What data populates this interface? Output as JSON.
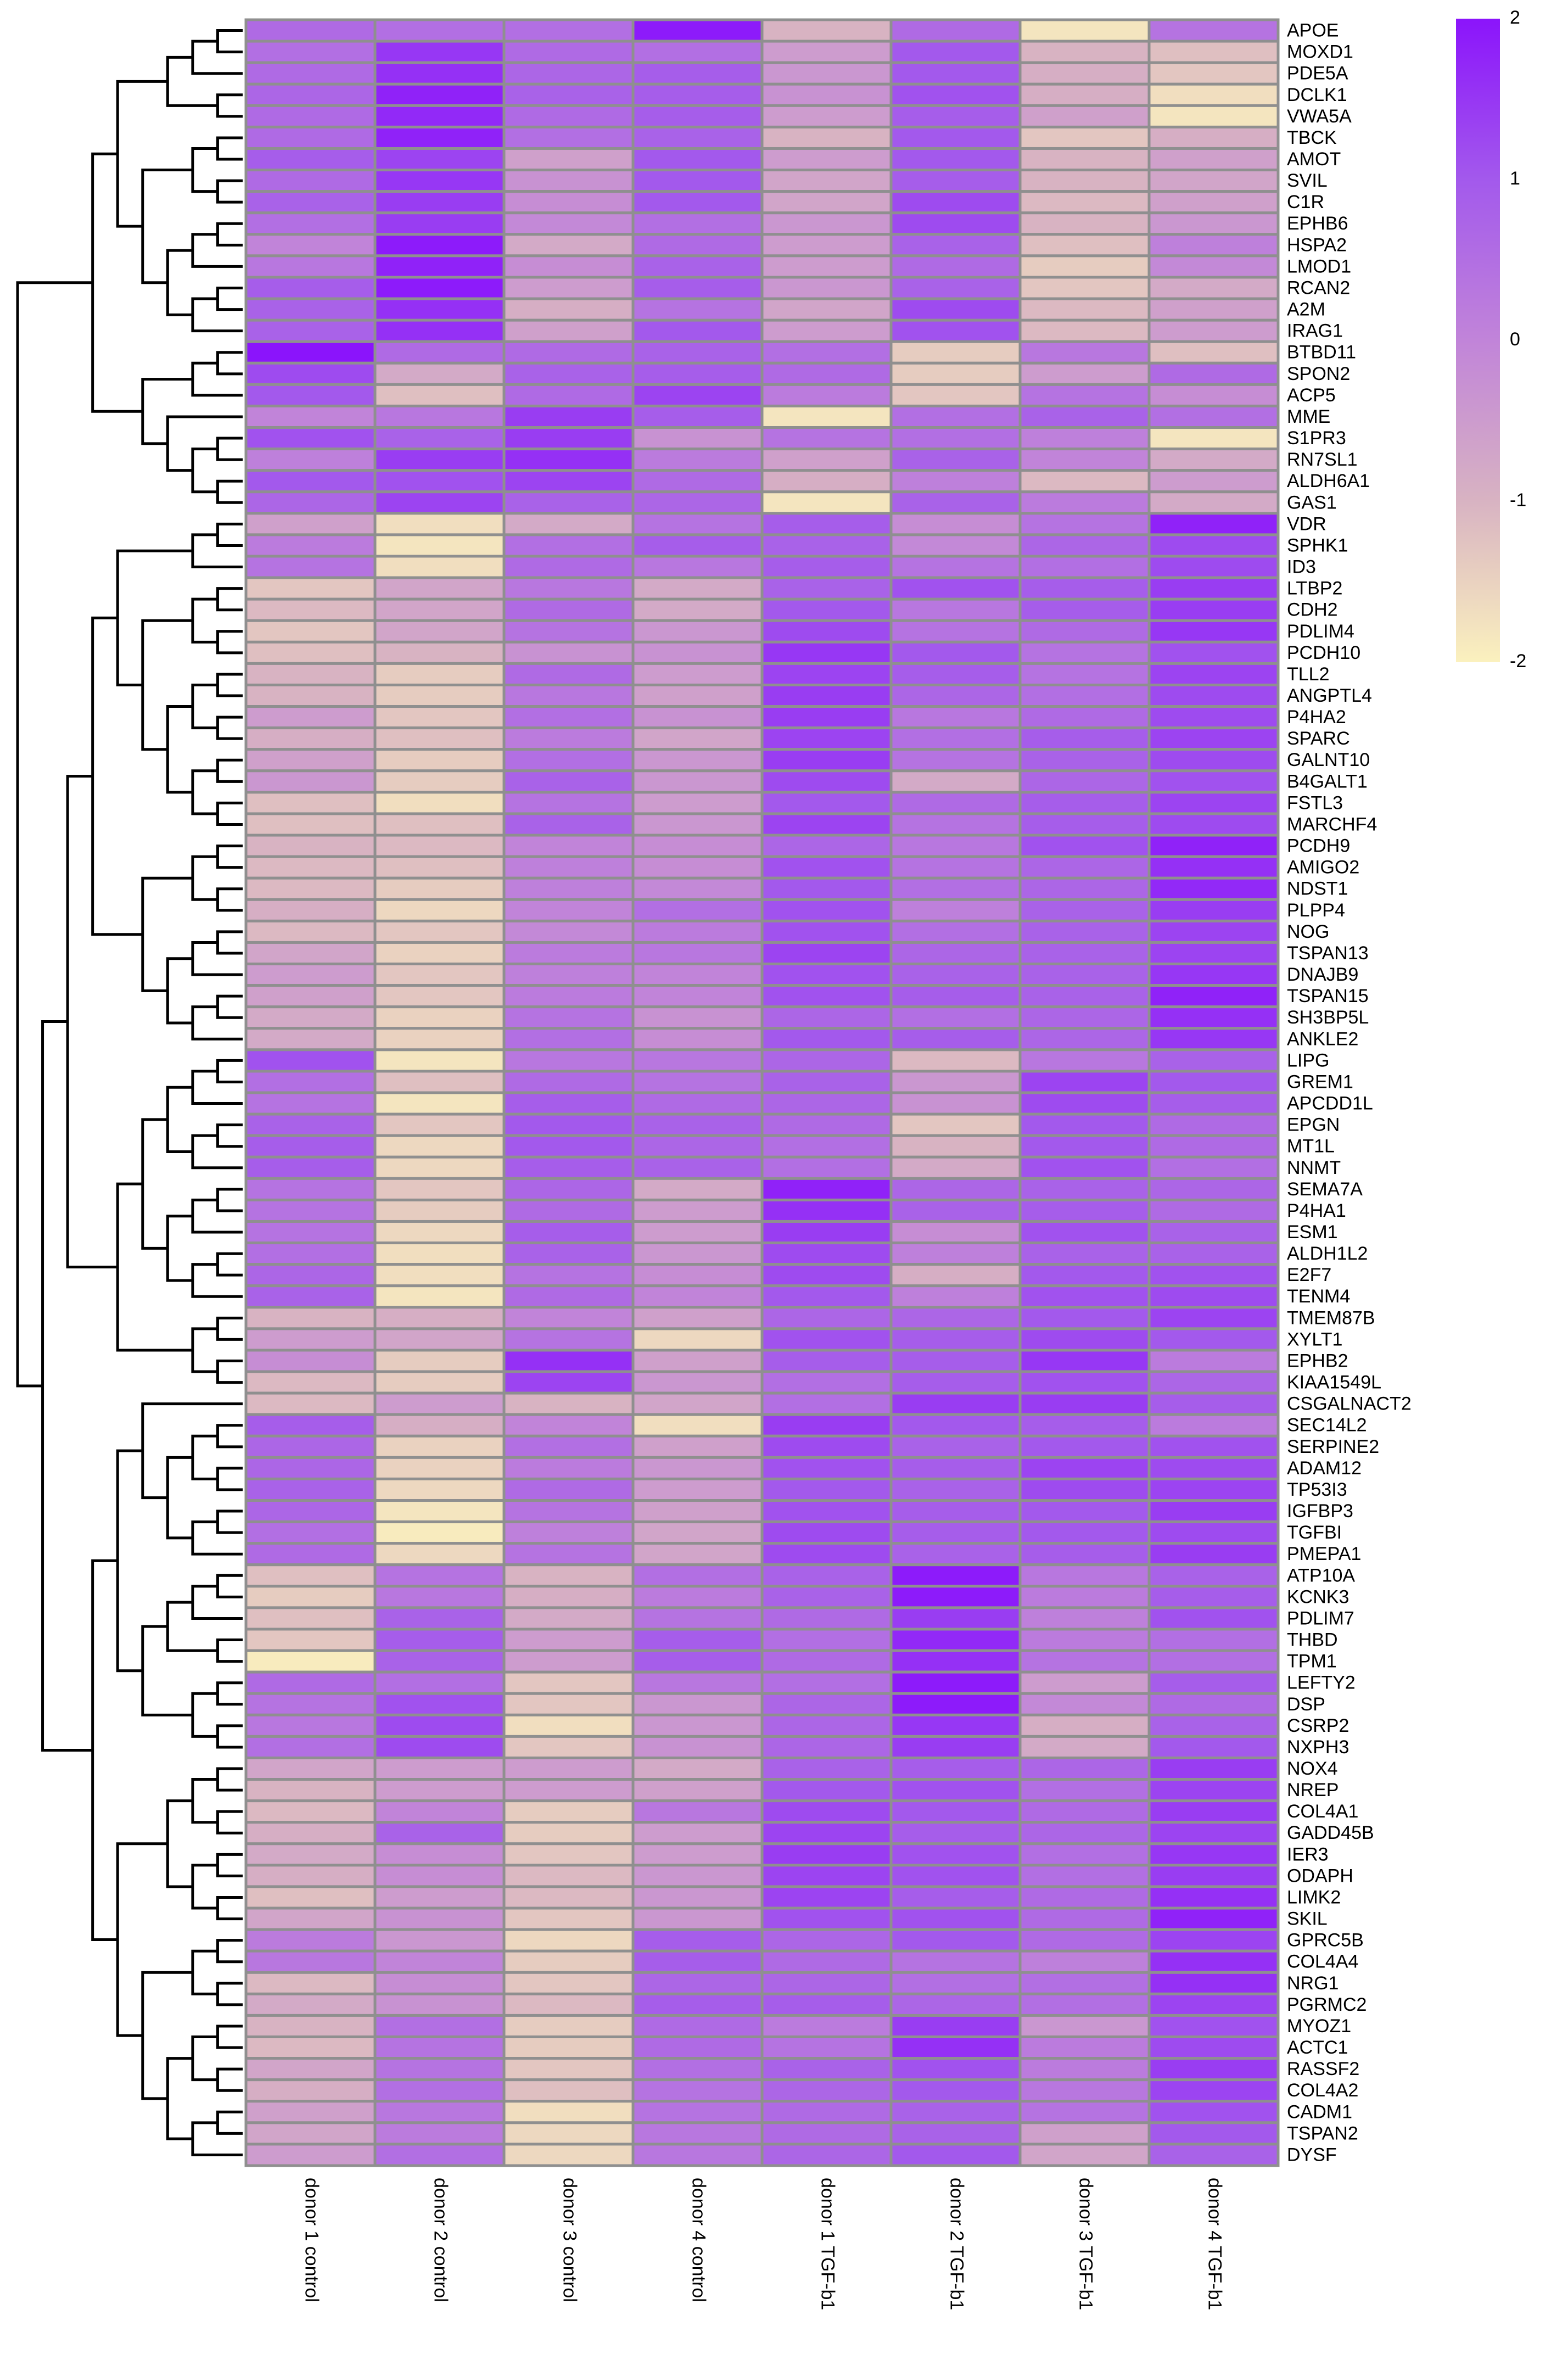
{
  "chart_data": {
    "type": "heatmap",
    "title": "",
    "columns": [
      "donor 1 control",
      "donor 2 control",
      "donor 3 control",
      "donor 4 control",
      "donor 1 TGF-b1",
      "donor 2 TGF-b1",
      "donor 3 TGF-b1",
      "donor 4 TGF-b1"
    ],
    "rows": [
      "APOE",
      "MOXD1",
      "PDE5A",
      "DCLK1",
      "VWA5A",
      "TBCK",
      "AMOT",
      "SVIL",
      "C1R",
      "EPHB6",
      "HSPA2",
      "LMOD1",
      "RCAN2",
      "A2M",
      "IRAG1",
      "BTBD11",
      "SPON2",
      "ACP5",
      "MME",
      "S1PR3",
      "RN7SL1",
      "ALDH6A1",
      "GAS1",
      "VDR",
      "SPHK1",
      "ID3",
      "LTBP2",
      "CDH2",
      "PDLIM4",
      "PCDH10",
      "TLL2",
      "ANGPTL4",
      "P4HA2",
      "SPARC",
      "GALNT10",
      "B4GALT1",
      "FSTL3",
      "MARCHF4",
      "PCDH9",
      "AMIGO2",
      "NDST1",
      "PLPP4",
      "NOG",
      "TSPAN13",
      "DNAJB9",
      "TSPAN15",
      "SH3BP5L",
      "ANKLE2",
      "LIPG",
      "GREM1",
      "APCDD1L",
      "EPGN",
      "MT1L",
      "NNMT",
      "SEMA7A",
      "P4HA1",
      "ESM1",
      "ALDH1L2",
      "E2F7",
      "TENM4",
      "TMEM87B",
      "XYLT1",
      "EPHB2",
      "KIAA1549L",
      "CSGALNACT2",
      "SEC14L2",
      "SERPINE2",
      "ADAM12",
      "TP53I3",
      "IGFBP3",
      "TGFBI",
      "PMEPA1",
      "ATP10A",
      "KCNK3",
      "PDLIM7",
      "THBD",
      "TPM1",
      "LEFTY2",
      "DSP",
      "CSRP2",
      "NXPH3",
      "NOX4",
      "NREP",
      "COL4A1",
      "GADD45B",
      "IER3",
      "ODAPH",
      "LIMK2",
      "SKIL",
      "GPRC5B",
      "COL4A4",
      "NRG1",
      "PGRMC2",
      "MYOZ1",
      "ACTC1",
      "RASSF2",
      "COL4A2",
      "CADM1",
      "TSPAN2",
      "DYSF"
    ],
    "values": [
      [
        0.6,
        0.5,
        0.5,
        1.9,
        -1.0,
        0.6,
        -1.8,
        0.4
      ],
      [
        0.5,
        1.5,
        0.6,
        0.5,
        -0.5,
        1.0,
        -1.0,
        -1.2
      ],
      [
        0.6,
        1.6,
        0.7,
        0.9,
        -0.4,
        1.0,
        -0.9,
        -1.3
      ],
      [
        0.7,
        1.8,
        0.8,
        0.9,
        -0.3,
        1.1,
        -0.9,
        -1.7
      ],
      [
        0.6,
        1.7,
        0.6,
        0.9,
        -0.5,
        0.9,
        -0.6,
        -1.8
      ],
      [
        0.6,
        1.8,
        0.5,
        0.8,
        -1.0,
        1.0,
        -1.3,
        -0.9
      ],
      [
        0.9,
        1.3,
        -0.6,
        1.0,
        -0.5,
        1.0,
        -1.0,
        -0.6
      ],
      [
        0.6,
        1.5,
        -0.3,
        1.0,
        -0.7,
        0.9,
        -1.0,
        -0.7
      ],
      [
        0.8,
        1.4,
        -0.2,
        1.0,
        -0.7,
        1.2,
        -1.1,
        -0.6
      ],
      [
        0.5,
        1.4,
        -0.1,
        0.5,
        -0.4,
        1.2,
        -1.0,
        -0.4
      ],
      [
        0.0,
        1.9,
        -0.8,
        0.6,
        -0.5,
        0.8,
        -1.2,
        0.1
      ],
      [
        0.3,
        1.8,
        -0.2,
        0.8,
        -0.5,
        0.6,
        -1.4,
        -0.1
      ],
      [
        0.9,
        1.9,
        -0.5,
        0.9,
        -0.4,
        0.8,
        -1.3,
        -0.8
      ],
      [
        0.8,
        1.6,
        -0.9,
        0.4,
        -0.7,
        1.2,
        -1.1,
        -0.6
      ],
      [
        0.8,
        1.6,
        -0.6,
        1.0,
        -0.5,
        1.1,
        -1.1,
        -0.5
      ],
      [
        2.0,
        0.6,
        0.6,
        0.8,
        0.5,
        -1.4,
        0.3,
        -1.2
      ],
      [
        1.2,
        -0.8,
        0.8,
        0.9,
        0.6,
        -1.4,
        -0.5,
        0.6
      ],
      [
        1.0,
        -1.2,
        0.6,
        1.3,
        0.2,
        -1.3,
        0.4,
        -0.2
      ],
      [
        0.0,
        0.3,
        1.4,
        0.9,
        -1.8,
        0.5,
        0.8,
        0.5
      ],
      [
        1.1,
        0.8,
        1.4,
        -0.3,
        0.4,
        0.5,
        0.1,
        -1.8
      ],
      [
        0.1,
        1.4,
        1.6,
        0.2,
        -0.6,
        0.8,
        0.0,
        -0.8
      ],
      [
        1.0,
        1.1,
        1.3,
        0.6,
        -0.9,
        0.1,
        -1.1,
        -0.5
      ],
      [
        0.7,
        1.3,
        0.8,
        0.7,
        -1.8,
        0.8,
        0.2,
        -0.8
      ],
      [
        -0.6,
        -1.7,
        -0.8,
        0.4,
        0.9,
        -0.2,
        0.4,
        1.8
      ],
      [
        0.2,
        -1.8,
        0.5,
        0.9,
        0.8,
        -0.1,
        0.7,
        1.2
      ],
      [
        0.4,
        -1.7,
        0.6,
        0.3,
        0.9,
        0.4,
        0.5,
        1.2
      ],
      [
        -1.3,
        -0.7,
        0.3,
        -0.8,
        0.8,
        1.1,
        0.9,
        1.4
      ],
      [
        -1.1,
        -0.7,
        0.6,
        -0.8,
        1.0,
        0.3,
        0.9,
        1.4
      ],
      [
        -1.3,
        -0.7,
        0.4,
        -0.4,
        1.2,
        0.4,
        0.6,
        1.5
      ],
      [
        -1.2,
        -1.0,
        -0.3,
        -0.3,
        1.5,
        1.0,
        0.4,
        1.1
      ],
      [
        -1.0,
        -1.4,
        0.6,
        -0.5,
        1.3,
        0.9,
        0.4,
        1.3
      ],
      [
        -1.0,
        -1.4,
        0.3,
        -0.6,
        1.4,
        0.7,
        0.5,
        1.2
      ],
      [
        -0.5,
        -1.3,
        0.5,
        -0.3,
        1.4,
        0.3,
        0.6,
        1.2
      ],
      [
        -0.9,
        -1.2,
        0.2,
        -0.7,
        1.3,
        0.5,
        0.9,
        1.3
      ],
      [
        -0.6,
        -1.4,
        0.5,
        -0.4,
        1.4,
        0.4,
        0.8,
        1.2
      ],
      [
        -0.4,
        -1.4,
        0.8,
        -0.4,
        1.2,
        -0.8,
        0.7,
        1.1
      ],
      [
        -1.2,
        -1.7,
        0.4,
        -0.5,
        1.0,
        0.6,
        0.9,
        1.3
      ],
      [
        -1.2,
        -1.2,
        0.8,
        -0.4,
        1.3,
        0.4,
        0.9,
        1.2
      ],
      [
        -1.0,
        -1.1,
        0.0,
        -0.2,
        0.7,
        0.3,
        1.1,
        1.8
      ],
      [
        -1.1,
        -1.2,
        0.1,
        -0.2,
        1.1,
        0.4,
        0.7,
        1.6
      ],
      [
        -1.1,
        -1.4,
        0.1,
        -0.1,
        1.0,
        0.5,
        0.7,
        1.7
      ],
      [
        -0.9,
        -1.6,
        0.0,
        0.5,
        1.1,
        0.1,
        0.8,
        1.4
      ],
      [
        -1.1,
        -1.3,
        -0.1,
        0.2,
        1.1,
        0.5,
        0.8,
        1.3
      ],
      [
        -0.7,
        -1.5,
        0.2,
        0.3,
        1.3,
        0.7,
        0.8,
        1.3
      ],
      [
        -0.5,
        -1.3,
        0.1,
        0.0,
        1.1,
        0.8,
        0.8,
        1.5
      ],
      [
        -0.6,
        -1.3,
        0.2,
        0.0,
        1.1,
        0.9,
        0.8,
        1.8
      ],
      [
        -0.8,
        -1.5,
        0.4,
        -0.3,
        0.7,
        0.5,
        0.7,
        1.6
      ],
      [
        -0.8,
        -1.5,
        0.5,
        -0.2,
        1.0,
        0.9,
        0.7,
        1.5
      ],
      [
        1.1,
        -1.8,
        0.3,
        0.3,
        0.7,
        -1.1,
        0.3,
        0.8
      ],
      [
        0.5,
        -1.2,
        0.6,
        0.4,
        0.8,
        -0.4,
        1.3,
        1.0
      ],
      [
        0.4,
        -1.8,
        0.9,
        0.6,
        0.7,
        -0.3,
        1.2,
        0.9
      ],
      [
        0.8,
        -1.3,
        1.0,
        0.8,
        0.6,
        -1.3,
        1.0,
        0.6
      ],
      [
        0.9,
        -1.6,
        1.0,
        0.7,
        0.5,
        -1.0,
        1.0,
        0.6
      ],
      [
        0.9,
        -1.6,
        0.9,
        0.8,
        0.5,
        -0.8,
        1.1,
        0.5
      ],
      [
        0.4,
        -1.3,
        0.7,
        -0.8,
        1.8,
        0.7,
        0.8,
        0.7
      ],
      [
        0.4,
        -1.4,
        0.6,
        -0.5,
        1.6,
        0.8,
        0.9,
        0.6
      ],
      [
        0.4,
        -1.6,
        0.9,
        -0.5,
        1.4,
        -0.2,
        1.1,
        0.8
      ],
      [
        0.5,
        -1.7,
        0.8,
        -0.4,
        1.2,
        0.1,
        0.8,
        0.8
      ],
      [
        0.7,
        -1.7,
        0.4,
        -0.2,
        1.2,
        -0.9,
        1.0,
        1.1
      ],
      [
        0.8,
        -1.8,
        0.6,
        0.0,
        1.0,
        0.1,
        1.1,
        1.2
      ],
      [
        -1.0,
        -0.9,
        0.0,
        -0.6,
        0.7,
        0.7,
        1.0,
        1.3
      ],
      [
        -0.5,
        -0.7,
        0.4,
        -1.6,
        1.1,
        0.9,
        1.2,
        1.0
      ],
      [
        -0.2,
        -1.4,
        1.6,
        -0.6,
        0.9,
        0.9,
        1.5,
        0.2
      ],
      [
        -1.1,
        -1.4,
        1.3,
        -0.4,
        0.5,
        0.9,
        1.1,
        0.7
      ],
      [
        -1.1,
        -0.5,
        -1.0,
        -0.7,
        0.5,
        1.4,
        1.4,
        0.9
      ],
      [
        0.9,
        -0.9,
        0.0,
        -1.7,
        1.4,
        1.0,
        0.9,
        0.2
      ],
      [
        0.7,
        -1.5,
        0.5,
        -0.6,
        1.2,
        0.8,
        1.0,
        1.1
      ],
      [
        0.7,
        -1.5,
        0.2,
        -0.4,
        1.1,
        0.9,
        1.3,
        1.2
      ],
      [
        0.8,
        -1.6,
        0.6,
        -0.5,
        1.0,
        0.8,
        1.2,
        1.3
      ],
      [
        0.7,
        -1.8,
        0.4,
        -0.6,
        1.1,
        0.9,
        1.0,
        1.4
      ],
      [
        0.5,
        -1.9,
        0.1,
        -0.7,
        1.2,
        0.9,
        1.0,
        1.2
      ],
      [
        0.6,
        -1.6,
        0.4,
        -0.7,
        1.2,
        0.8,
        0.9,
        1.4
      ],
      [
        -1.2,
        0.4,
        -1.0,
        0.5,
        0.8,
        1.9,
        0.3,
        0.8
      ],
      [
        -1.4,
        0.3,
        -0.9,
        0.2,
        0.8,
        1.9,
        0.2,
        0.9
      ],
      [
        -1.2,
        0.8,
        -0.8,
        0.4,
        0.6,
        1.4,
        0.1,
        1.1
      ],
      [
        -1.3,
        0.9,
        -0.5,
        0.9,
        0.5,
        1.7,
        0.2,
        0.5
      ],
      [
        -1.9,
        0.8,
        -0.5,
        0.9,
        0.6,
        1.6,
        0.4,
        0.5
      ],
      [
        0.6,
        0.5,
        -1.3,
        0.3,
        0.5,
        1.9,
        -0.5,
        0.9
      ],
      [
        0.4,
        1.1,
        -1.3,
        -0.4,
        0.7,
        1.9,
        -0.1,
        0.6
      ],
      [
        0.3,
        1.2,
        -1.7,
        -0.4,
        0.7,
        1.5,
        -0.9,
        0.8
      ],
      [
        0.5,
        1.2,
        -1.3,
        -0.3,
        0.7,
        1.4,
        -0.8,
        1.0
      ],
      [
        -0.7,
        -0.5,
        -0.5,
        -0.8,
        0.8,
        0.9,
        0.7,
        1.4
      ],
      [
        -1.0,
        -0.5,
        -0.5,
        -0.6,
        1.0,
        1.1,
        0.5,
        1.3
      ],
      [
        -1.1,
        0.0,
        -1.4,
        0.3,
        1.2,
        1.0,
        0.6,
        1.4
      ],
      [
        -0.9,
        0.8,
        -1.4,
        -0.5,
        1.3,
        0.9,
        0.7,
        1.3
      ],
      [
        -0.8,
        -0.2,
        -1.3,
        -0.5,
        1.4,
        1.1,
        0.5,
        1.5
      ],
      [
        -0.9,
        -0.2,
        -1.1,
        -0.4,
        1.3,
        1.1,
        0.5,
        1.4
      ],
      [
        -1.2,
        -0.5,
        -1.1,
        -0.4,
        1.3,
        0.9,
        0.6,
        1.6
      ],
      [
        -0.7,
        -0.3,
        -1.3,
        -0.4,
        1.1,
        1.1,
        0.6,
        1.8
      ],
      [
        0.2,
        -0.4,
        -1.6,
        0.9,
        0.7,
        1.0,
        0.6,
        1.3
      ],
      [
        0.3,
        0.0,
        -1.4,
        0.9,
        0.6,
        0.4,
        0.1,
        1.6
      ],
      [
        -1.1,
        -0.2,
        -1.3,
        0.7,
        0.7,
        0.5,
        0.5,
        1.6
      ],
      [
        -0.8,
        -0.3,
        -1.1,
        0.9,
        0.9,
        0.7,
        0.5,
        1.3
      ],
      [
        -1.0,
        0.5,
        -1.4,
        0.6,
        0.2,
        1.4,
        -0.4,
        1.1
      ],
      [
        -1.1,
        0.4,
        -1.4,
        0.6,
        0.4,
        1.6,
        0.2,
        1.2
      ],
      [
        -0.7,
        0.4,
        -1.3,
        0.5,
        0.8,
        1.1,
        0.2,
        1.4
      ],
      [
        -0.9,
        0.5,
        -1.2,
        0.4,
        0.7,
        1.0,
        0.3,
        1.3
      ],
      [
        -0.6,
        0.3,
        -1.7,
        0.4,
        0.6,
        0.8,
        0.4,
        1.1
      ],
      [
        -0.7,
        0.2,
        -1.6,
        0.3,
        0.6,
        0.8,
        -0.6,
        1.0
      ],
      [
        -0.5,
        0.5,
        -1.6,
        0.3,
        0.7,
        1.0,
        -0.7,
        0.8
      ]
    ],
    "color_scale": {
      "min": -2,
      "max": 2,
      "colors": [
        "#fbf1be",
        "#d8b3c2",
        "#c184d9",
        "#a359ec",
        "#8b14fb"
      ],
      "ticks": [
        2,
        1,
        0,
        -1,
        -2
      ],
      "tick_labels": [
        "2",
        "1",
        "0",
        "-1",
        "-2"
      ]
    },
    "cell_border_color": "#8f8f8f",
    "legend": "top-right",
    "row_dendrogram": true,
    "row_leaf_order": "as listed"
  }
}
